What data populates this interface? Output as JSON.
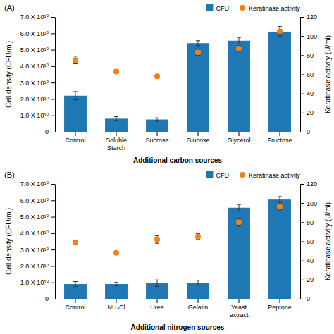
{
  "chart_data": [
    {
      "type": "bar",
      "title": "(A)",
      "xlabel": "Additional carbon sources",
      "ylabel": "Cell density (CFU/ml)",
      "y2label": "Keratinase activity (U/ml)",
      "categories": [
        "Control",
        "Soluble\nStarch",
        "Sucrose",
        "Glucose",
        "Glycerol",
        "Fructose"
      ],
      "ylim": [
        0,
        70000000000
      ],
      "yticks": [
        0,
        {
          "value": 10000000000,
          "label": "1.0 X 10¹⁰"
        },
        {
          "value": 20000000000,
          "label": "2.0 X 10¹⁰"
        },
        {
          "value": 30000000000,
          "label": "3.0 X 10¹⁰"
        },
        {
          "value": 40000000000,
          "label": "4.0 X 10¹⁰"
        },
        {
          "value": 50000000000,
          "label": "5.0 X 10¹⁰"
        },
        {
          "value": 60000000000,
          "label": "6.0 X 10¹⁰"
        },
        {
          "value": 70000000000,
          "label": "7.0 X 10¹⁰"
        }
      ],
      "y2lim": [
        0,
        120
      ],
      "y2ticks": [
        0,
        20,
        40,
        60,
        80,
        100,
        120
      ],
      "legend": "top",
      "series": [
        {
          "name": "CFU",
          "type": "bar",
          "values": [
            22000000000,
            8000000000,
            7500000000,
            54000000000,
            55500000000,
            61000000000
          ],
          "errors": [
            2500000000,
            1200000000,
            1000000000,
            1500000000,
            2000000000,
            1500000000
          ]
        },
        {
          "name": "Keratinase activity",
          "type": "scatter",
          "axis": "y2",
          "values": [
            75,
            63,
            58,
            83,
            87,
            105
          ],
          "errors": [
            4,
            2,
            2,
            3,
            3,
            5
          ]
        }
      ]
    },
    {
      "type": "bar",
      "title": "(B)",
      "xlabel": "Additional nitrogen sources",
      "ylabel": "Cell density (CFU/ml)",
      "y2label": "Keratinase activity (U/ml)",
      "categories": [
        "Control",
        "NH₄Cl",
        "Urea",
        "Gelatin",
        "Yeast\nextract",
        "Peptone"
      ],
      "ylim": [
        0,
        70000000000
      ],
      "yticks": [
        0,
        {
          "value": 10000000000,
          "label": "1.0 X 10¹⁰"
        },
        {
          "value": 20000000000,
          "label": "2.0 X 10¹⁰"
        },
        {
          "value": 30000000000,
          "label": "3.0 X 10¹⁰"
        },
        {
          "value": 40000000000,
          "label": "4.0 X 10¹⁰"
        },
        {
          "value": 50000000000,
          "label": "5.0 X 10¹⁰"
        },
        {
          "value": 60000000000,
          "label": "6.0 X 10¹⁰"
        },
        {
          "value": 70000000000,
          "label": "7.0 X 10¹⁰"
        }
      ],
      "y2lim": [
        0,
        120
      ],
      "y2ticks": [
        0,
        20,
        40,
        60,
        80,
        100,
        120
      ],
      "legend": "top",
      "series": [
        {
          "name": "CFU",
          "type": "bar",
          "values": [
            9000000000,
            9000000000,
            9500000000,
            9800000000,
            55500000000,
            60500000000
          ],
          "errors": [
            1500000000,
            1000000000,
            2000000000,
            1500000000,
            2000000000,
            1800000000
          ]
        },
        {
          "name": "Keratinase activity",
          "type": "scatter",
          "axis": "y2",
          "values": [
            59,
            48,
            62,
            65,
            80,
            96
          ],
          "errors": [
            2,
            2,
            4,
            3,
            4,
            3
          ]
        }
      ]
    }
  ]
}
